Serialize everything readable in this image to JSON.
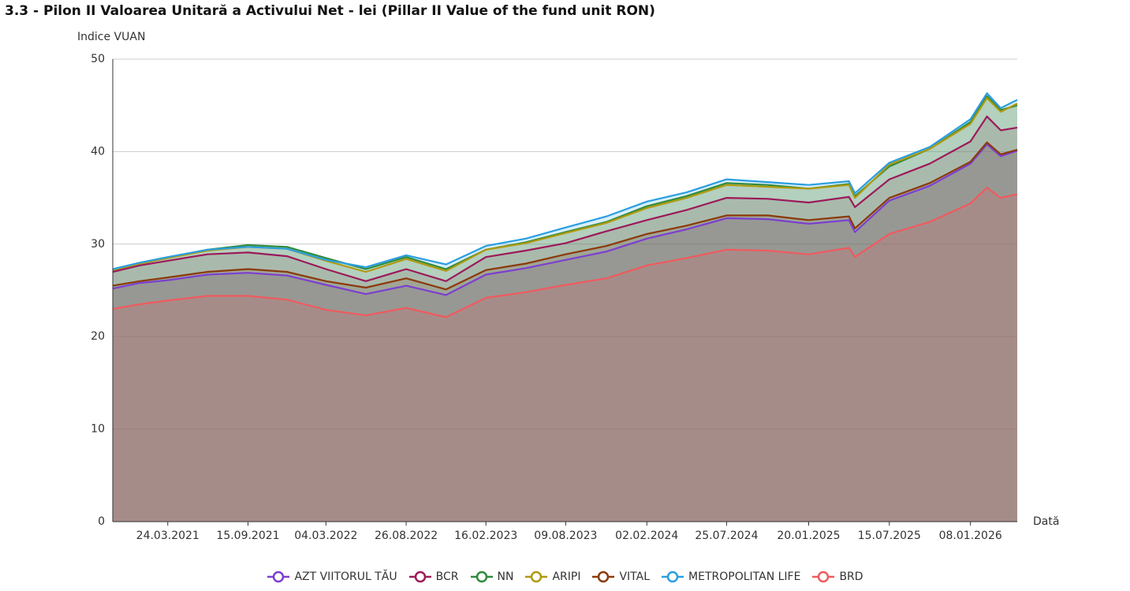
{
  "chart_data": {
    "type": "area",
    "title": "3.3 - Pilon II Valoarea Unitară a Activului Net - lei (Pillar II Value of the fund unit RON)",
    "y_label": "Indice VUAN",
    "x_label": "Dată",
    "x": [
      "24.11.2020",
      "22.01.2021",
      "24.03.2021",
      "19.06.2021",
      "15.09.2021",
      "09.12.2021",
      "04.03.2022",
      "30.05.2022",
      "26.08.2022",
      "21.11.2022",
      "16.02.2023",
      "14.05.2023",
      "09.08.2023",
      "06.11.2023",
      "02.02.2024",
      "29.04.2024",
      "25.07.2024",
      "23.10.2024",
      "20.01.2025",
      "18.04.2025",
      "01.05.2025",
      "15.07.2025",
      "11.10.2025",
      "08.01.2026",
      "13.02.2026",
      "15.03.2026",
      "20.04.2026"
    ],
    "xlim": [
      "24.11.2020",
      "20.04.2026"
    ],
    "xticks": [
      "24.03.2021",
      "15.09.2021",
      "04.03.2022",
      "26.08.2022",
      "16.02.2023",
      "09.08.2023",
      "02.02.2024",
      "25.07.2024",
      "20.01.2025",
      "15.07.2025",
      "08.01.2026"
    ],
    "ylim": [
      0,
      50
    ],
    "yticks": [
      0,
      10,
      20,
      30,
      40,
      50
    ],
    "grid": true,
    "series": [
      {
        "name": "AZT VIITORUL TĂU",
        "color": "#7b3fd0",
        "values": [
          25.2,
          25.8,
          26.1,
          26.7,
          26.9,
          26.6,
          25.6,
          24.6,
          25.5,
          24.5,
          26.7,
          27.4,
          28.3,
          29.2,
          30.6,
          31.6,
          32.8,
          32.7,
          32.2,
          32.6,
          31.3,
          34.7,
          36.3,
          38.7,
          40.8,
          39.5,
          40.1
        ]
      },
      {
        "name": "BCR",
        "color": "#9c1a5a",
        "values": [
          27.0,
          27.7,
          28.2,
          28.9,
          29.1,
          28.7,
          27.3,
          26.0,
          27.3,
          26.0,
          28.6,
          29.3,
          30.1,
          31.4,
          32.6,
          33.7,
          35.0,
          34.9,
          34.5,
          35.1,
          34.0,
          37.0,
          38.7,
          41.1,
          43.8,
          42.3,
          42.6
        ]
      },
      {
        "name": "NN",
        "color": "#2e8b3d",
        "values": [
          27.2,
          27.9,
          28.5,
          29.4,
          29.9,
          29.7,
          28.5,
          27.3,
          28.6,
          27.3,
          29.4,
          30.2,
          31.3,
          32.4,
          34.1,
          35.2,
          36.6,
          36.4,
          36.0,
          36.5,
          35.2,
          38.4,
          40.3,
          43.2,
          46.0,
          44.5,
          45.0
        ]
      },
      {
        "name": "ARIPI",
        "color": "#b0990f",
        "values": [
          27.2,
          27.9,
          28.5,
          29.3,
          29.7,
          29.5,
          28.2,
          27.0,
          28.4,
          27.1,
          29.4,
          30.1,
          31.2,
          32.3,
          33.9,
          35.0,
          36.4,
          36.2,
          36.0,
          36.4,
          35.0,
          38.6,
          40.3,
          43.0,
          45.8,
          44.3,
          45.2
        ]
      },
      {
        "name": "VITAL",
        "color": "#8b3a0a",
        "values": [
          25.5,
          26.0,
          26.4,
          27.0,
          27.3,
          27.0,
          26.0,
          25.3,
          26.3,
          25.1,
          27.2,
          27.9,
          28.9,
          29.8,
          31.1,
          32.0,
          33.1,
          33.1,
          32.6,
          33.0,
          31.7,
          35.0,
          36.6,
          38.9,
          41.0,
          39.7,
          40.2
        ]
      },
      {
        "name": "METROPOLITAN LIFE",
        "color": "#2a9ee0",
        "values": [
          27.3,
          28.0,
          28.6,
          29.4,
          29.7,
          29.5,
          28.3,
          27.5,
          28.8,
          27.8,
          29.8,
          30.6,
          31.8,
          33.0,
          34.6,
          35.6,
          37.0,
          36.7,
          36.4,
          36.8,
          35.5,
          38.8,
          40.5,
          43.5,
          46.3,
          44.7,
          45.6
        ]
      },
      {
        "name": "BRD",
        "color": "#f05a5e",
        "values": [
          23.0,
          23.5,
          23.9,
          24.4,
          24.4,
          24.0,
          22.9,
          22.3,
          23.1,
          22.1,
          24.2,
          24.8,
          25.6,
          26.3,
          27.7,
          28.5,
          29.4,
          29.3,
          28.9,
          29.6,
          28.6,
          31.1,
          32.4,
          34.4,
          36.1,
          35.0,
          35.4
        ]
      }
    ]
  }
}
